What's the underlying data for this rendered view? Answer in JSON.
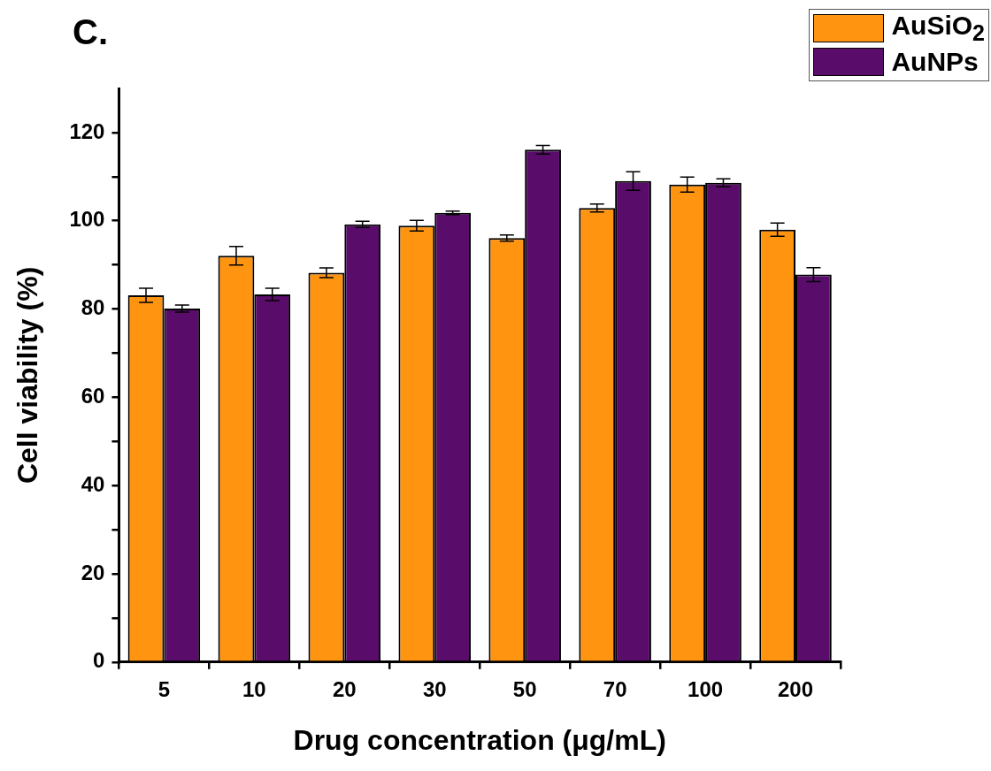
{
  "chart_data": {
    "type": "bar",
    "title": "C.",
    "xlabel": "Drug concentration (μg/mL)",
    "ylabel": "Cell viability (%)",
    "categories": [
      "5",
      "10",
      "20",
      "30",
      "50",
      "70",
      "100",
      "200"
    ],
    "series": [
      {
        "name": "AuSiO$_{2}$",
        "color": "#ff9410",
        "values": [
          83.1,
          92.1,
          88.2,
          98.9,
          96.1,
          102.9,
          108.2,
          98.0
        ],
        "errors": [
          1.6,
          2.1,
          1.1,
          1.2,
          0.7,
          0.9,
          1.7,
          1.5
        ]
      },
      {
        "name": "AuNPs",
        "color": "#5a0c6b",
        "values": [
          80.1,
          83.3,
          99.2,
          101.8,
          116.1,
          109.0,
          108.6,
          87.8
        ],
        "errors": [
          0.8,
          1.4,
          0.7,
          0.4,
          1.0,
          2.1,
          0.9,
          1.6
        ]
      }
    ],
    "ylim": [
      0,
      130
    ],
    "yticks": [
      0,
      {
        "value": 10,
        "label": null
      },
      20,
      {
        "value": 30,
        "label": null
      },
      40,
      {
        "value": 50,
        "label": null
      },
      60,
      {
        "value": 70,
        "label": null
      },
      80,
      {
        "value": 90,
        "label": null
      },
      100,
      {
        "value": 110,
        "label": null
      },
      120
    ],
    "grid": false,
    "legend": "top right"
  }
}
